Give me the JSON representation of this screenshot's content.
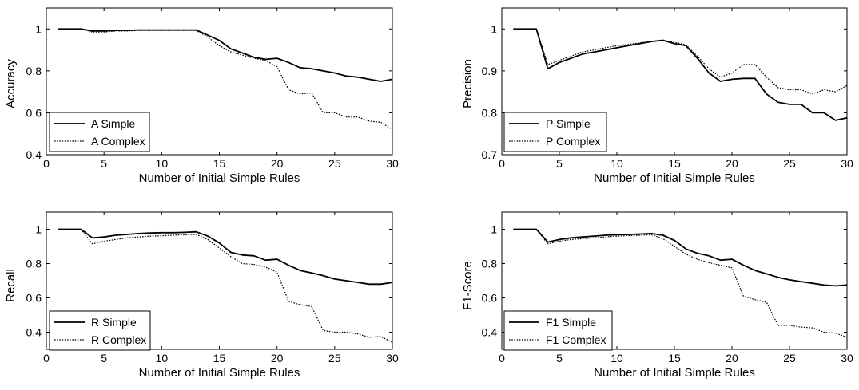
{
  "chart_data": [
    {
      "type": "line",
      "xlabel": "Number of Initial Simple Rules",
      "ylabel": "Accuracy",
      "xlim": [
        0,
        30
      ],
      "ylim": [
        0.4,
        1.1
      ],
      "xticks": [
        "0",
        "5",
        "10",
        "15",
        "20",
        "25",
        "30"
      ],
      "yticks": [
        "0.4",
        "0.6",
        "0.8",
        "1"
      ],
      "ytick_values": [
        0.4,
        0.6,
        0.8,
        1.0
      ],
      "legend_position": "bottom-left",
      "x": [
        1,
        2,
        3,
        4,
        5,
        6,
        7,
        8,
        9,
        10,
        11,
        12,
        13,
        14,
        15,
        16,
        17,
        18,
        19,
        20,
        21,
        22,
        23,
        24,
        25,
        26,
        27,
        28,
        29,
        30
      ],
      "series": [
        {
          "name": "A Simple",
          "style": "solid",
          "values": [
            1,
            1,
            1,
            0.99,
            0.99,
            0.993,
            0.993,
            0.995,
            0.995,
            0.995,
            0.995,
            0.995,
            0.995,
            0.97,
            0.945,
            0.905,
            0.885,
            0.865,
            0.855,
            0.86,
            0.84,
            0.815,
            0.81,
            0.8,
            0.79,
            0.775,
            0.77,
            0.76,
            0.75,
            0.76
          ]
        },
        {
          "name": "A Complex",
          "style": "dotted",
          "values": [
            1,
            1,
            1,
            0.985,
            0.985,
            0.99,
            0.99,
            0.993,
            0.993,
            0.993,
            0.993,
            0.993,
            0.993,
            0.96,
            0.92,
            0.89,
            0.875,
            0.86,
            0.85,
            0.82,
            0.71,
            0.69,
            0.695,
            0.6,
            0.6,
            0.58,
            0.58,
            0.56,
            0.555,
            0.52
          ]
        }
      ]
    },
    {
      "type": "line",
      "xlabel": "Number of Initial Simple Rules",
      "ylabel": "Precision",
      "xlim": [
        0,
        30
      ],
      "ylim": [
        0.7,
        1.05
      ],
      "xticks": [
        "0",
        "5",
        "10",
        "15",
        "20",
        "25",
        "30"
      ],
      "yticks": [
        "0.7",
        "0.8",
        "0.9",
        "1"
      ],
      "ytick_values": [
        0.7,
        0.8,
        0.9,
        1.0
      ],
      "legend_position": "bottom-left",
      "x": [
        1,
        2,
        3,
        4,
        5,
        6,
        7,
        8,
        9,
        10,
        11,
        12,
        13,
        14,
        15,
        16,
        17,
        18,
        19,
        20,
        21,
        22,
        23,
        24,
        25,
        26,
        27,
        28,
        29,
        30
      ],
      "series": [
        {
          "name": "P Simple",
          "style": "solid",
          "values": [
            1,
            1,
            1,
            0.905,
            0.92,
            0.93,
            0.94,
            0.945,
            0.95,
            0.955,
            0.96,
            0.965,
            0.97,
            0.973,
            0.965,
            0.96,
            0.93,
            0.895,
            0.875,
            0.88,
            0.882,
            0.882,
            0.845,
            0.825,
            0.82,
            0.82,
            0.8,
            0.8,
            0.782,
            0.788
          ]
        },
        {
          "name": "P Complex",
          "style": "dotted",
          "values": [
            1,
            1,
            1,
            0.915,
            0.925,
            0.935,
            0.945,
            0.95,
            0.955,
            0.96,
            0.963,
            0.967,
            0.97,
            0.973,
            0.968,
            0.962,
            0.935,
            0.905,
            0.885,
            0.895,
            0.915,
            0.915,
            0.885,
            0.86,
            0.855,
            0.855,
            0.845,
            0.855,
            0.85,
            0.865
          ]
        }
      ]
    },
    {
      "type": "line",
      "xlabel": "Number of Initial Simple Rules",
      "ylabel": "Recall",
      "xlim": [
        0,
        30
      ],
      "ylim": [
        0.3,
        1.1
      ],
      "xticks": [
        "0",
        "5",
        "10",
        "15",
        "20",
        "25",
        "30"
      ],
      "yticks": [
        "0.4",
        "0.6",
        "0.8",
        "1"
      ],
      "ytick_values": [
        0.4,
        0.6,
        0.8,
        1.0
      ],
      "legend_position": "bottom-left",
      "x": [
        1,
        2,
        3,
        4,
        5,
        6,
        7,
        8,
        9,
        10,
        11,
        12,
        13,
        14,
        15,
        16,
        17,
        18,
        19,
        20,
        21,
        22,
        23,
        24,
        25,
        26,
        27,
        28,
        29,
        30
      ],
      "series": [
        {
          "name": "R Simple",
          "style": "solid",
          "values": [
            1,
            1,
            1,
            0.95,
            0.955,
            0.965,
            0.97,
            0.975,
            0.978,
            0.98,
            0.98,
            0.982,
            0.985,
            0.96,
            0.92,
            0.865,
            0.85,
            0.845,
            0.82,
            0.825,
            0.79,
            0.76,
            0.745,
            0.73,
            0.71,
            0.7,
            0.69,
            0.68,
            0.68,
            0.69
          ]
        },
        {
          "name": "R Complex",
          "style": "dotted",
          "values": [
            1,
            1,
            1,
            0.915,
            0.93,
            0.94,
            0.95,
            0.955,
            0.96,
            0.962,
            0.965,
            0.968,
            0.97,
            0.94,
            0.89,
            0.84,
            0.8,
            0.795,
            0.78,
            0.75,
            0.58,
            0.56,
            0.55,
            0.41,
            0.4,
            0.4,
            0.39,
            0.37,
            0.375,
            0.34
          ]
        }
      ]
    },
    {
      "type": "line",
      "xlabel": "Number of Initial Simple Rules",
      "ylabel": "F1-Score",
      "xlim": [
        0,
        30
      ],
      "ylim": [
        0.3,
        1.1
      ],
      "xticks": [
        "0",
        "5",
        "10",
        "15",
        "20",
        "25",
        "30"
      ],
      "yticks": [
        "0.4",
        "0.6",
        "0.8",
        "1"
      ],
      "ytick_values": [
        0.4,
        0.6,
        0.8,
        1.0
      ],
      "legend_position": "bottom-left",
      "x": [
        1,
        2,
        3,
        4,
        5,
        6,
        7,
        8,
        9,
        10,
        11,
        12,
        13,
        14,
        15,
        16,
        17,
        18,
        19,
        20,
        21,
        22,
        23,
        24,
        25,
        26,
        27,
        28,
        29,
        30
      ],
      "series": [
        {
          "name": "F1 Simple",
          "style": "solid",
          "values": [
            1,
            1,
            1,
            0.925,
            0.94,
            0.95,
            0.955,
            0.96,
            0.965,
            0.968,
            0.97,
            0.972,
            0.975,
            0.965,
            0.935,
            0.885,
            0.86,
            0.845,
            0.82,
            0.825,
            0.79,
            0.76,
            0.74,
            0.72,
            0.705,
            0.695,
            0.685,
            0.675,
            0.67,
            0.675
          ]
        },
        {
          "name": "F1 Complex",
          "style": "dotted",
          "values": [
            1,
            1,
            1,
            0.915,
            0.93,
            0.94,
            0.945,
            0.95,
            0.955,
            0.96,
            0.963,
            0.965,
            0.968,
            0.945,
            0.9,
            0.855,
            0.825,
            0.805,
            0.79,
            0.775,
            0.61,
            0.59,
            0.575,
            0.44,
            0.44,
            0.43,
            0.425,
            0.4,
            0.395,
            0.37
          ]
        }
      ]
    }
  ]
}
